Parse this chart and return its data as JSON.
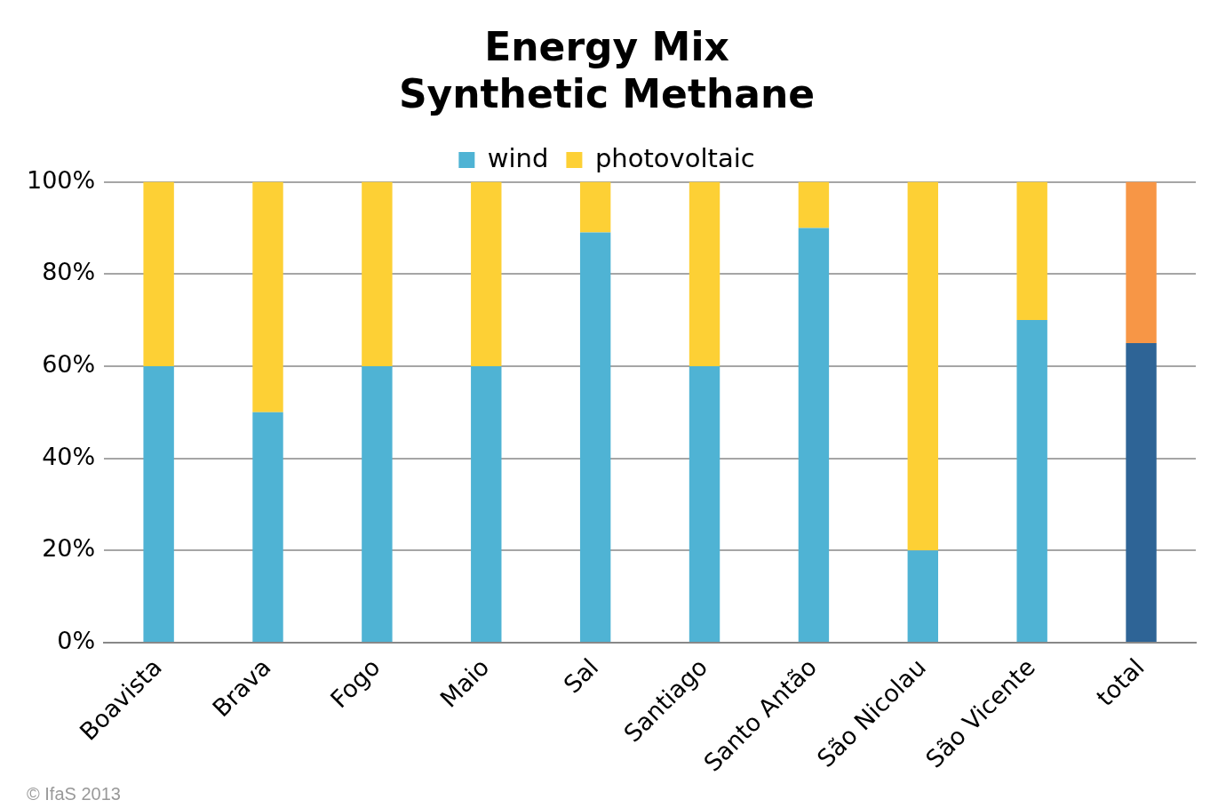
{
  "chart_data": {
    "type": "bar",
    "title": "Energy Mix",
    "subtitle": "Synthetic Methane",
    "categories": [
      "Boavista",
      "Brava",
      "Fogo",
      "Maio",
      "Sal",
      "Santiago",
      "Santo Antão",
      "São Nicolau",
      "São Vicente",
      "total"
    ],
    "stacked": true,
    "series": [
      {
        "name": "wind",
        "color": "#4fb3d4",
        "colors": [
          "#4fb3d4",
          "#4fb3d4",
          "#4fb3d4",
          "#4fb3d4",
          "#4fb3d4",
          "#4fb3d4",
          "#4fb3d4",
          "#4fb3d4",
          "#4fb3d4",
          "#2e6496"
        ],
        "values": [
          60,
          50,
          60,
          60,
          89,
          60,
          90,
          20,
          70,
          65
        ]
      },
      {
        "name": "photovoltaic",
        "color": "#fdd035",
        "colors": [
          "#fdd035",
          "#fdd035",
          "#fdd035",
          "#fdd035",
          "#fdd035",
          "#fdd035",
          "#fdd035",
          "#fdd035",
          "#fdd035",
          "#f79646"
        ],
        "values": [
          40,
          50,
          40,
          40,
          11,
          40,
          10,
          80,
          30,
          35
        ]
      }
    ],
    "ylim": [
      0,
      100
    ],
    "yticks": [
      {
        "value": 0,
        "label": "0%"
      },
      {
        "value": 20,
        "label": "20%"
      },
      {
        "value": 40,
        "label": "40%"
      },
      {
        "value": 60,
        "label": "60%"
      },
      {
        "value": 80,
        "label": "80%"
      },
      {
        "value": 100,
        "label": "100%"
      }
    ],
    "grid": "y",
    "legend": "top",
    "annotations": [
      "© IfaS 2013"
    ]
  }
}
